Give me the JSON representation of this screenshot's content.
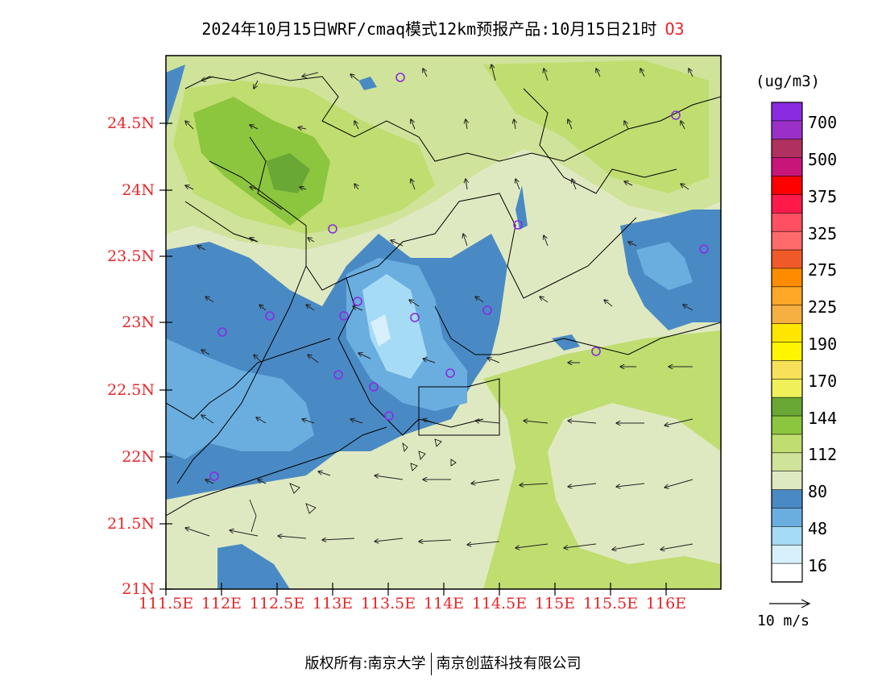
{
  "title": "2024年10月15日WRF/cmaq模式12km预报产品:10月15日21时",
  "pollutant": "O3",
  "units": "(ug/m3)",
  "wind_reference": "10 m/s",
  "footer": {
    "copyright_label": "版权所有:",
    "owner_primary": "南京大学",
    "owner_secondary": "南京创蓝科技有限公司"
  },
  "axes": {
    "lat_ticks": [
      "24.5N",
      "24N",
      "23.5N",
      "23N",
      "22.5N",
      "22N",
      "21.5N",
      "21N"
    ],
    "lon_ticks": [
      "111.5E",
      "112E",
      "112.5E",
      "113E",
      "113.5E",
      "114E",
      "114.5E",
      "115E",
      "115.5E",
      "116E"
    ],
    "tick_color": "#e8262a"
  },
  "colorbar": {
    "labels": [
      "700",
      "500",
      "375",
      "325",
      "275",
      "225",
      "190",
      "170",
      "144",
      "112",
      "80",
      "48",
      "16"
    ],
    "colors": [
      "#8a2be2",
      "#9b30c8",
      "#b03060",
      "#c8157a",
      "#ff0000",
      "#ff1a4a",
      "#ff4f62",
      "#ff6a6a",
      "#f05a28",
      "#ff8c00",
      "#ffa726",
      "#f5b041",
      "#ffe600",
      "#fff500",
      "#f7e15a",
      "#f0f05a",
      "#6aa835",
      "#8cc63e",
      "#c0dd70",
      "#cfe39a",
      "#dfe9c1",
      "#4a8ac4",
      "#6aaee0",
      "#a6dbf5",
      "#d7f0fc",
      "#ffffff"
    ]
  },
  "map_colors": {
    "background": "#dfe9c1",
    "green_light": "#cfe39a",
    "green_mid": "#c0dd70",
    "green_dark": "#8cc63e",
    "green_darkest": "#6aa835",
    "blue_dark": "#4a8ac4",
    "blue_mid": "#6aaee0",
    "blue_light": "#a6dbf5",
    "blue_lightest": "#d7f0fc",
    "station_marker": "#8a2be2"
  }
}
